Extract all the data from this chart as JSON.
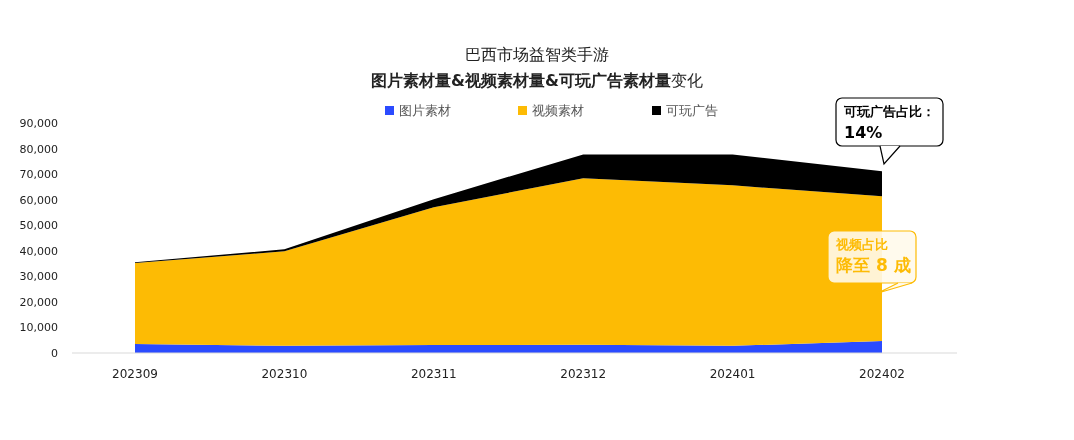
{
  "chart_data": {
    "type": "area",
    "stacked": true,
    "title": "巴西市场益智类手游",
    "subtitle": "**图片素材量&视频素材量&可玩广告素材量**变化",
    "categories": [
      "202309",
      "202310",
      "202311",
      "202312",
      "202401",
      "202402"
    ],
    "series": [
      {
        "name": "图片素材",
        "color": "#2b4bff",
        "values": [
          3500,
          2800,
          3100,
          3200,
          2800,
          4700
        ]
      },
      {
        "name": "视频素材",
        "color": "#fdbb04",
        "values": [
          31700,
          37000,
          53900,
          65200,
          62800,
          56600
        ]
      },
      {
        "name": "可玩广告",
        "color": "#000000",
        "values": [
          300,
          800,
          3200,
          9300,
          12100,
          9800
        ]
      }
    ],
    "ylim": [
      0,
      90000
    ],
    "yticks": [
      {
        "value": 0,
        "label": "0"
      },
      {
        "value": 10000,
        "label": "10,000"
      },
      {
        "value": 20000,
        "label": "20,000"
      },
      {
        "value": 30000,
        "label": "30,000"
      },
      {
        "value": 40000,
        "label": "40,000"
      },
      {
        "value": 50000,
        "label": "50,000"
      },
      {
        "value": 60000,
        "label": "60,000"
      },
      {
        "value": 70000,
        "label": "70,000"
      },
      {
        "value": 80000,
        "label": "80,000"
      },
      {
        "value": 90000,
        "label": "90,000"
      }
    ],
    "legend": "top",
    "grid": false,
    "annotations": [
      "可玩广告占比：",
      "14%",
      "视频占比",
      "降至 8 成"
    ]
  }
}
